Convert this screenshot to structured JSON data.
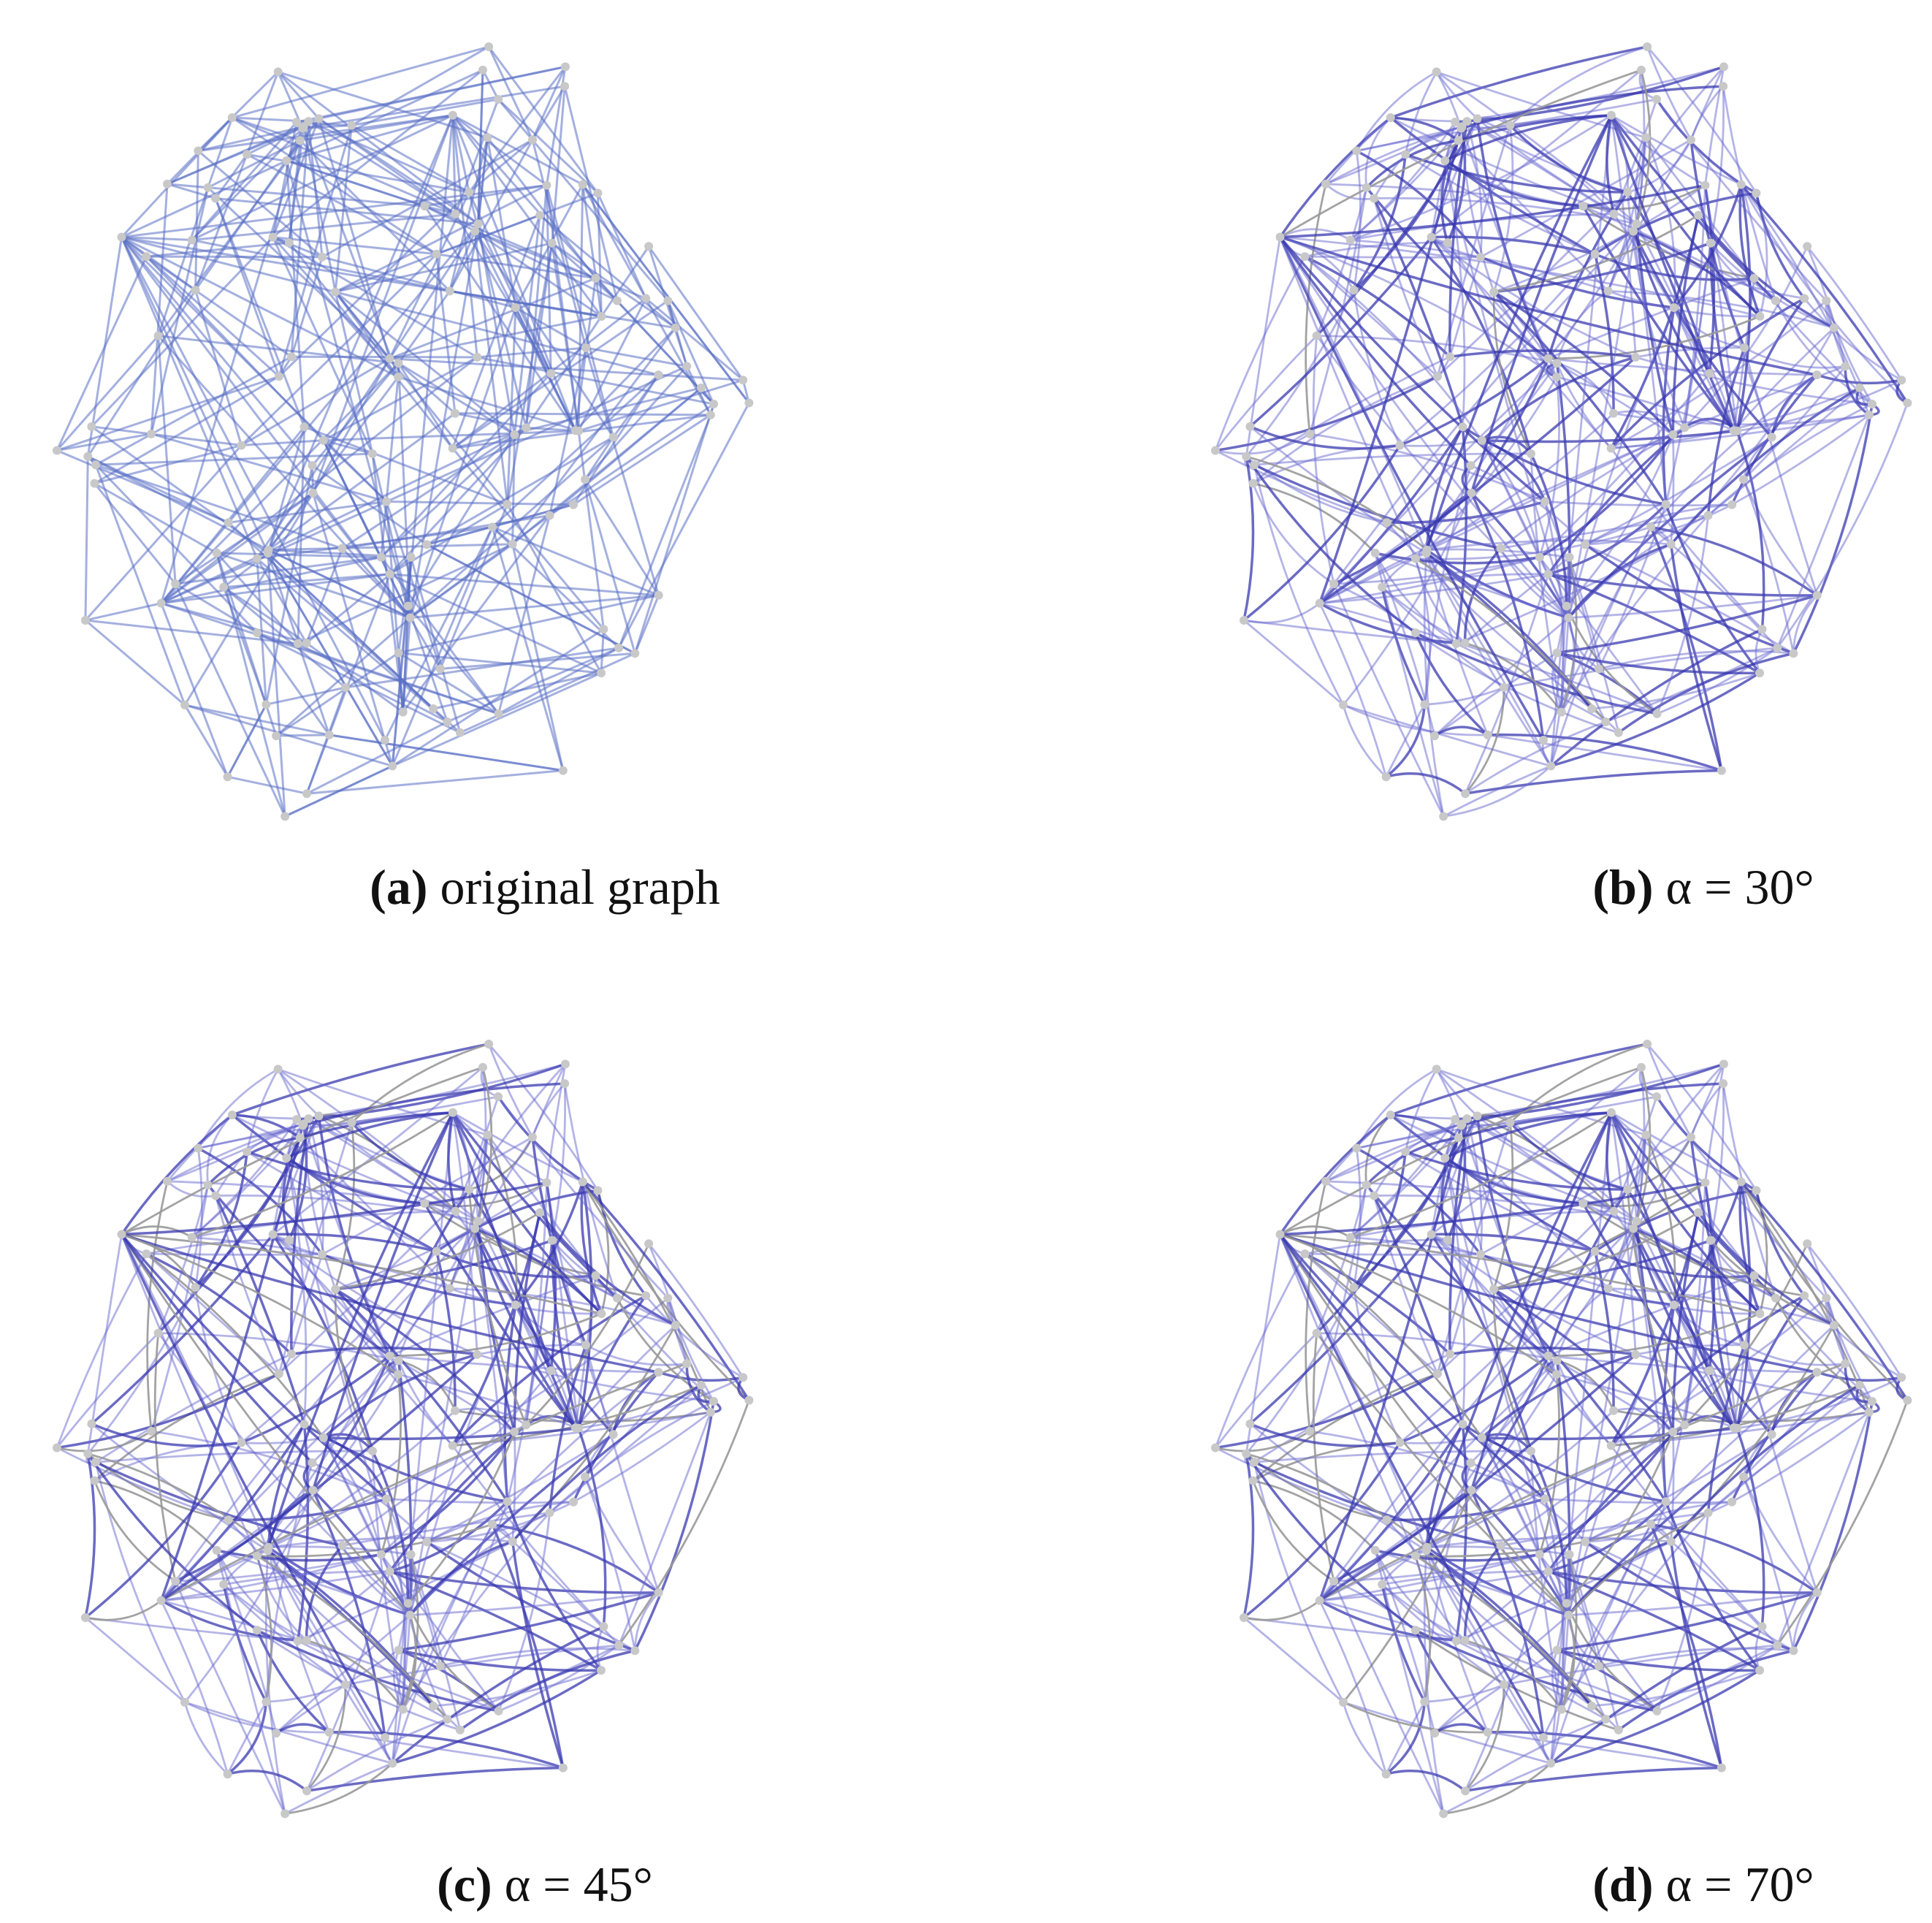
{
  "panels": [
    {
      "label": "(a)",
      "caption": "original graph"
    },
    {
      "label": "(b)",
      "caption": "α = 30°"
    },
    {
      "label": "(c)",
      "caption": "α = 45°"
    },
    {
      "label": "(d)",
      "caption": "α = 70°"
    }
  ]
}
